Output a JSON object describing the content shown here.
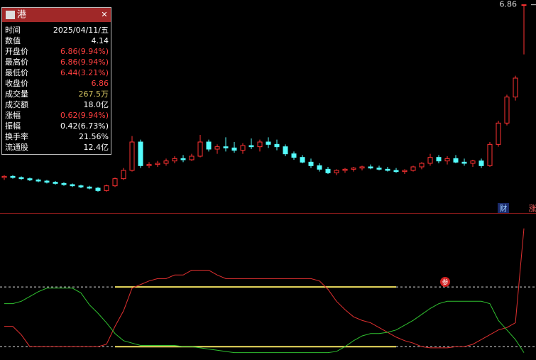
{
  "chart_data": {
    "type": "candlestick",
    "up_color": "#ff3232",
    "down_color": "#54fcfc",
    "ylim": [
      5.1,
      6.9
    ],
    "yticks": [
      6.86
    ],
    "ohlc": [
      [
        5.4,
        5.42,
        5.38,
        5.41
      ],
      [
        5.41,
        5.42,
        5.39,
        5.4
      ],
      [
        5.4,
        5.41,
        5.38,
        5.39
      ],
      [
        5.39,
        5.4,
        5.37,
        5.38
      ],
      [
        5.38,
        5.39,
        5.36,
        5.37
      ],
      [
        5.37,
        5.38,
        5.35,
        5.36
      ],
      [
        5.36,
        5.37,
        5.34,
        5.35
      ],
      [
        5.35,
        5.36,
        5.33,
        5.34
      ],
      [
        5.34,
        5.35,
        5.32,
        5.33
      ],
      [
        5.33,
        5.34,
        5.31,
        5.32
      ],
      [
        5.32,
        5.33,
        5.3,
        5.31
      ],
      [
        5.31,
        5.32,
        5.28,
        5.29
      ],
      [
        5.29,
        5.34,
        5.28,
        5.33
      ],
      [
        5.33,
        5.4,
        5.32,
        5.39
      ],
      [
        5.39,
        5.48,
        5.38,
        5.46
      ],
      [
        5.46,
        5.75,
        5.45,
        5.7
      ],
      [
        5.7,
        5.72,
        5.48,
        5.5
      ],
      [
        5.5,
        5.53,
        5.48,
        5.51
      ],
      [
        5.51,
        5.54,
        5.49,
        5.52
      ],
      [
        5.52,
        5.56,
        5.5,
        5.54
      ],
      [
        5.54,
        5.58,
        5.52,
        5.56
      ],
      [
        5.56,
        5.59,
        5.53,
        5.55
      ],
      [
        5.55,
        5.6,
        5.54,
        5.58
      ],
      [
        5.58,
        5.76,
        5.57,
        5.7
      ],
      [
        5.7,
        5.72,
        5.62,
        5.64
      ],
      [
        5.64,
        5.68,
        5.6,
        5.66
      ],
      [
        5.66,
        5.74,
        5.62,
        5.65
      ],
      [
        5.65,
        5.7,
        5.61,
        5.63
      ],
      [
        5.63,
        5.69,
        5.6,
        5.67
      ],
      [
        5.67,
        5.73,
        5.64,
        5.66
      ],
      [
        5.66,
        5.72,
        5.62,
        5.7
      ],
      [
        5.7,
        5.74,
        5.65,
        5.68
      ],
      [
        5.68,
        5.72,
        5.63,
        5.66
      ],
      [
        5.66,
        5.68,
        5.58,
        5.6
      ],
      [
        5.6,
        5.62,
        5.55,
        5.57
      ],
      [
        5.57,
        5.59,
        5.52,
        5.53
      ],
      [
        5.53,
        5.56,
        5.48,
        5.5
      ],
      [
        5.5,
        5.52,
        5.45,
        5.47
      ],
      [
        5.47,
        5.49,
        5.43,
        5.44
      ],
      [
        5.44,
        5.47,
        5.42,
        5.46
      ],
      [
        5.46,
        5.48,
        5.44,
        5.47
      ],
      [
        5.47,
        5.49,
        5.45,
        5.48
      ],
      [
        5.48,
        5.5,
        5.46,
        5.49
      ],
      [
        5.49,
        5.51,
        5.47,
        5.48
      ],
      [
        5.48,
        5.5,
        5.46,
        5.47
      ],
      [
        5.47,
        5.49,
        5.45,
        5.46
      ],
      [
        5.46,
        5.48,
        5.44,
        5.45
      ],
      [
        5.45,
        5.47,
        5.43,
        5.46
      ],
      [
        5.46,
        5.5,
        5.45,
        5.49
      ],
      [
        5.49,
        5.53,
        5.47,
        5.52
      ],
      [
        5.52,
        5.6,
        5.5,
        5.57
      ],
      [
        5.57,
        5.59,
        5.52,
        5.54
      ],
      [
        5.54,
        5.58,
        5.51,
        5.56
      ],
      [
        5.56,
        5.59,
        5.52,
        5.53
      ],
      [
        5.53,
        5.56,
        5.5,
        5.52
      ],
      [
        5.52,
        5.55,
        5.49,
        5.54
      ],
      [
        5.54,
        5.56,
        5.48,
        5.5
      ],
      [
        5.5,
        5.7,
        5.49,
        5.68
      ],
      [
        5.68,
        5.88,
        5.66,
        5.86
      ],
      [
        5.86,
        6.1,
        5.84,
        6.08
      ],
      [
        6.08,
        6.26,
        6.05,
        6.24
      ],
      [
        6.86,
        6.86,
        6.44,
        6.86
      ]
    ],
    "indicator": {
      "ylim": [
        -7,
        100
      ],
      "levels": [
        50,
        0
      ],
      "series": [
        {
          "color": "#e03030",
          "values": [
            17,
            17,
            10,
            0,
            0,
            0,
            0,
            0,
            0,
            0,
            0,
            0,
            2,
            17,
            30,
            49,
            52,
            55,
            57,
            57,
            60,
            60,
            64,
            64,
            64,
            60,
            57,
            57,
            57,
            57,
            57,
            57,
            57,
            57,
            57,
            57,
            57,
            55,
            48,
            38,
            31,
            25,
            22,
            20,
            16,
            12,
            8,
            5,
            3,
            0,
            -1,
            -1,
            -1,
            0,
            0,
            2,
            6,
            10,
            14,
            16,
            20,
            99
          ]
        },
        {
          "color": "#30c030",
          "values": [
            36,
            36,
            38,
            42,
            46,
            49,
            49,
            49,
            49,
            45,
            35,
            28,
            20,
            11,
            5,
            3,
            1,
            1,
            1,
            1,
            1,
            0,
            0,
            -1,
            -2,
            -3,
            -4,
            -5,
            -5,
            -5,
            -5,
            -5,
            -5,
            -5,
            -5,
            -5,
            -5,
            -5,
            -5,
            -4,
            0,
            5,
            9,
            11,
            11,
            12,
            14,
            18,
            22,
            27,
            32,
            36,
            38,
            38,
            38,
            38,
            38,
            36,
            22,
            14,
            6,
            -5
          ]
        }
      ]
    },
    "badges": [
      "财",
      "涨",
      "参"
    ]
  },
  "tooltip": {
    "title": "港",
    "close": "✕",
    "rows": [
      {
        "label": "时间",
        "value": "2025/04/11/五",
        "color": "#ffffff"
      },
      {
        "label": "数值",
        "value": "4.14",
        "color": "#ffffff"
      },
      {
        "label": "开盘价",
        "value": "6.86(9.94%)",
        "color": "#ff4040"
      },
      {
        "label": "最高价",
        "value": "6.86(9.94%)",
        "color": "#ff4040"
      },
      {
        "label": "最低价",
        "value": "6.44(3.21%)",
        "color": "#ff4040"
      },
      {
        "label": "收盘价",
        "value": "6.86",
        "color": "#ff4040"
      },
      {
        "label": "成交量",
        "value": "267.5万",
        "color": "#d0c060"
      },
      {
        "label": "成交额",
        "value": "18.0亿",
        "color": "#ffffff"
      },
      {
        "label": "涨幅",
        "value": "0.62(9.94%)",
        "color": "#ff4040"
      },
      {
        "label": "振幅",
        "value": "0.42(6.73%)",
        "color": "#ffffff"
      },
      {
        "label": "换手率",
        "value": "21.56%",
        "color": "#ffffff"
      },
      {
        "label": "流通股",
        "value": "12.4亿",
        "color": "#ffffff"
      }
    ]
  }
}
